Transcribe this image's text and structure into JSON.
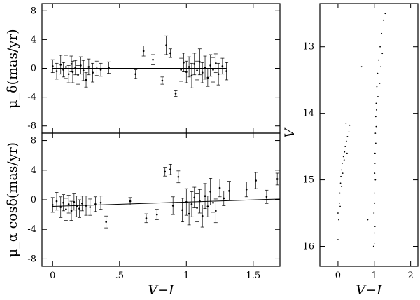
{
  "chart_data": [
    {
      "type": "scatter",
      "panel": "mu-delta",
      "ylabel": "μ_δ(mas/yr)",
      "xlabel": "",
      "xlim": [
        -0.08,
        1.7
      ],
      "ylim": [
        -9,
        9
      ],
      "xticks": [
        0,
        0.5,
        1,
        1.5
      ],
      "yticks": [
        -8,
        -4,
        0,
        4,
        8
      ],
      "ytick_labels": [
        "-8",
        "-4",
        "0",
        "4",
        "8"
      ],
      "fit_line": {
        "x": [
          0.0,
          1.3
        ],
        "y": [
          0.0,
          0.0
        ]
      },
      "points": [
        {
          "x": 0.0,
          "y": 0.3,
          "err": 0.9
        },
        {
          "x": 0.03,
          "y": -0.4,
          "err": 1.1
        },
        {
          "x": 0.06,
          "y": 0.5,
          "err": 1.3
        },
        {
          "x": 0.08,
          "y": -0.2,
          "err": 1.0
        },
        {
          "x": 0.1,
          "y": 0.2,
          "err": 1.6
        },
        {
          "x": 0.12,
          "y": -0.8,
          "err": 1.2
        },
        {
          "x": 0.14,
          "y": 0.6,
          "err": 1.1
        },
        {
          "x": 0.15,
          "y": -0.5,
          "err": 1.5
        },
        {
          "x": 0.17,
          "y": 0.1,
          "err": 1.0
        },
        {
          "x": 0.19,
          "y": -0.9,
          "err": 1.3
        },
        {
          "x": 0.21,
          "y": 0.4,
          "err": 1.2
        },
        {
          "x": 0.23,
          "y": -0.3,
          "err": 1.4
        },
        {
          "x": 0.25,
          "y": -1.6,
          "err": 1.0
        },
        {
          "x": 0.27,
          "y": 0.2,
          "err": 1.1
        },
        {
          "x": 0.3,
          "y": -0.6,
          "err": 1.3
        },
        {
          "x": 0.33,
          "y": 0.0,
          "err": 1.0
        },
        {
          "x": 0.36,
          "y": -0.2,
          "err": 0.9
        },
        {
          "x": 0.42,
          "y": 0.1,
          "err": 0.8
        },
        {
          "x": 0.62,
          "y": -0.8,
          "err": 0.6
        },
        {
          "x": 0.68,
          "y": 2.4,
          "err": 0.7
        },
        {
          "x": 0.75,
          "y": 1.2,
          "err": 0.7
        },
        {
          "x": 0.82,
          "y": -1.7,
          "err": 0.5
        },
        {
          "x": 0.85,
          "y": 3.2,
          "err": 1.3
        },
        {
          "x": 0.88,
          "y": 2.1,
          "err": 0.6
        },
        {
          "x": 0.92,
          "y": -3.5,
          "err": 0.4
        },
        {
          "x": 0.96,
          "y": -0.2,
          "err": 1.6
        },
        {
          "x": 0.98,
          "y": 0.8,
          "err": 1.3
        },
        {
          "x": 1.0,
          "y": -0.5,
          "err": 1.5
        },
        {
          "x": 1.02,
          "y": 0.2,
          "err": 1.4
        },
        {
          "x": 1.04,
          "y": -1.0,
          "err": 1.7
        },
        {
          "x": 1.06,
          "y": 0.6,
          "err": 1.5
        },
        {
          "x": 1.08,
          "y": -0.3,
          "err": 1.3
        },
        {
          "x": 1.1,
          "y": 0.9,
          "err": 1.8
        },
        {
          "x": 1.12,
          "y": -0.6,
          "err": 1.4
        },
        {
          "x": 1.14,
          "y": 0.1,
          "err": 1.6
        },
        {
          "x": 1.16,
          "y": -1.3,
          "err": 1.2
        },
        {
          "x": 1.18,
          "y": 0.4,
          "err": 1.5
        },
        {
          "x": 1.2,
          "y": -0.2,
          "err": 1.7
        },
        {
          "x": 1.22,
          "y": 0.7,
          "err": 1.3
        },
        {
          "x": 1.24,
          "y": -0.8,
          "err": 1.5
        },
        {
          "x": 1.27,
          "y": 0.3,
          "err": 1.1
        },
        {
          "x": 1.3,
          "y": -0.4,
          "err": 1.2
        }
      ]
    },
    {
      "type": "scatter",
      "panel": "mu-alpha",
      "ylabel": "μ_α cosδ(mas/yr)",
      "xlabel": "V−I",
      "xlim": [
        -0.08,
        1.7
      ],
      "ylim": [
        -9,
        9
      ],
      "xticks": [
        0,
        0.5,
        1,
        1.5
      ],
      "xtick_labels": [
        "0",
        ".5",
        "1",
        "1.5"
      ],
      "yticks": [
        -8,
        -4,
        0,
        4,
        8
      ],
      "ytick_labels": [
        "-8",
        "-4",
        "0",
        "4",
        "8"
      ],
      "fit_line": {
        "x": [
          0.0,
          1.7
        ],
        "y": [
          -0.9,
          0.1
        ]
      },
      "points": [
        {
          "x": 0.0,
          "y": -0.7,
          "err": 1.0
        },
        {
          "x": 0.03,
          "y": -0.2,
          "err": 1.2
        },
        {
          "x": 0.06,
          "y": -1.0,
          "err": 1.4
        },
        {
          "x": 0.08,
          "y": -0.4,
          "err": 1.1
        },
        {
          "x": 0.1,
          "y": -1.3,
          "err": 1.5
        },
        {
          "x": 0.12,
          "y": -0.6,
          "err": 1.2
        },
        {
          "x": 0.14,
          "y": -1.5,
          "err": 1.3
        },
        {
          "x": 0.16,
          "y": -0.3,
          "err": 1.1
        },
        {
          "x": 0.18,
          "y": -0.9,
          "err": 1.4
        },
        {
          "x": 0.2,
          "y": -1.2,
          "err": 1.2
        },
        {
          "x": 0.22,
          "y": -0.5,
          "err": 1.0
        },
        {
          "x": 0.25,
          "y": -0.8,
          "err": 1.3
        },
        {
          "x": 0.28,
          "y": -1.0,
          "err": 1.1
        },
        {
          "x": 0.32,
          "y": -0.6,
          "err": 1.0
        },
        {
          "x": 0.36,
          "y": -0.4,
          "err": 0.9
        },
        {
          "x": 0.4,
          "y": -3.0,
          "err": 0.8
        },
        {
          "x": 0.58,
          "y": -0.2,
          "err": 0.5
        },
        {
          "x": 0.7,
          "y": -2.5,
          "err": 0.6
        },
        {
          "x": 0.78,
          "y": -2.0,
          "err": 0.7
        },
        {
          "x": 0.84,
          "y": 3.8,
          "err": 0.6
        },
        {
          "x": 0.88,
          "y": 4.1,
          "err": 0.7
        },
        {
          "x": 0.9,
          "y": -0.8,
          "err": 1.2
        },
        {
          "x": 0.94,
          "y": 3.1,
          "err": 0.8
        },
        {
          "x": 0.97,
          "y": -1.4,
          "err": 1.6
        },
        {
          "x": 1.0,
          "y": -0.3,
          "err": 1.8
        },
        {
          "x": 1.02,
          "y": -1.9,
          "err": 1.5
        },
        {
          "x": 1.04,
          "y": -0.6,
          "err": 1.7
        },
        {
          "x": 1.06,
          "y": 0.3,
          "err": 1.4
        },
        {
          "x": 1.08,
          "y": -1.1,
          "err": 1.9
        },
        {
          "x": 1.1,
          "y": -0.2,
          "err": 1.6
        },
        {
          "x": 1.12,
          "y": -2.2,
          "err": 1.5
        },
        {
          "x": 1.14,
          "y": 0.5,
          "err": 1.7
        },
        {
          "x": 1.16,
          "y": -0.9,
          "err": 1.4
        },
        {
          "x": 1.18,
          "y": 1.1,
          "err": 1.8
        },
        {
          "x": 1.2,
          "y": -0.4,
          "err": 1.3
        },
        {
          "x": 1.22,
          "y": -1.5,
          "err": 1.6
        },
        {
          "x": 1.25,
          "y": 1.6,
          "err": 1.2
        },
        {
          "x": 1.28,
          "y": 0.2,
          "err": 1.0
        },
        {
          "x": 1.32,
          "y": 1.2,
          "err": 1.3
        },
        {
          "x": 1.45,
          "y": 1.4,
          "err": 1.0
        },
        {
          "x": 1.52,
          "y": 2.6,
          "err": 1.1
        },
        {
          "x": 1.6,
          "y": 0.4,
          "err": 0.9
        },
        {
          "x": 1.68,
          "y": 2.8,
          "err": 0.8
        }
      ]
    },
    {
      "type": "scatter",
      "panel": "cmd",
      "xlabel": "V−I",
      "ylabel": "V",
      "xlim": [
        -0.5,
        2.2
      ],
      "ylim": [
        16.3,
        12.35
      ],
      "y_inverted": true,
      "xticks": [
        0,
        1,
        2
      ],
      "xtick_labels": [
        "0",
        "1",
        "2"
      ],
      "yticks": [
        13,
        14,
        15,
        16
      ],
      "ytick_labels": [
        "13",
        "14",
        "15",
        "16"
      ],
      "points": [
        {
          "x": 0.0,
          "y": 15.9
        },
        {
          "x": 0.02,
          "y": 15.6
        },
        {
          "x": 0.0,
          "y": 15.5
        },
        {
          "x": 0.04,
          "y": 15.35
        },
        {
          "x": 0.05,
          "y": 15.2
        },
        {
          "x": 0.07,
          "y": 15.05
        },
        {
          "x": 0.08,
          "y": 14.95
        },
        {
          "x": 0.1,
          "y": 14.85
        },
        {
          "x": 0.12,
          "y": 14.75
        },
        {
          "x": 0.15,
          "y": 14.65
        },
        {
          "x": 0.18,
          "y": 14.58
        },
        {
          "x": 0.2,
          "y": 14.5
        },
        {
          "x": 0.23,
          "y": 14.42
        },
        {
          "x": 0.26,
          "y": 14.35
        },
        {
          "x": 0.3,
          "y": 14.28
        },
        {
          "x": 0.22,
          "y": 14.15
        },
        {
          "x": 0.32,
          "y": 14.18
        },
        {
          "x": 0.25,
          "y": 14.6
        },
        {
          "x": 0.17,
          "y": 14.7
        },
        {
          "x": 0.13,
          "y": 14.9
        },
        {
          "x": 0.1,
          "y": 15.1
        },
        {
          "x": 0.06,
          "y": 15.4
        },
        {
          "x": 0.65,
          "y": 13.3
        },
        {
          "x": 0.82,
          "y": 15.6
        },
        {
          "x": 0.98,
          "y": 16.0
        },
        {
          "x": 1.0,
          "y": 15.8
        },
        {
          "x": 0.99,
          "y": 15.5
        },
        {
          "x": 1.0,
          "y": 15.2
        },
        {
          "x": 1.01,
          "y": 14.9
        },
        {
          "x": 1.02,
          "y": 14.6
        },
        {
          "x": 1.03,
          "y": 14.3
        },
        {
          "x": 1.04,
          "y": 14.05
        },
        {
          "x": 1.05,
          "y": 13.85
        },
        {
          "x": 1.07,
          "y": 13.6
        },
        {
          "x": 1.09,
          "y": 13.4
        },
        {
          "x": 1.12,
          "y": 13.2
        },
        {
          "x": 1.16,
          "y": 13.0
        },
        {
          "x": 1.2,
          "y": 12.8
        },
        {
          "x": 1.25,
          "y": 12.6
        },
        {
          "x": 1.3,
          "y": 12.5
        },
        {
          "x": 1.1,
          "y": 13.75
        },
        {
          "x": 1.15,
          "y": 13.55
        },
        {
          "x": 1.18,
          "y": 13.3
        },
        {
          "x": 1.22,
          "y": 13.1
        },
        {
          "x": 1.0,
          "y": 15.95
        },
        {
          "x": 1.02,
          "y": 15.7
        },
        {
          "x": 1.01,
          "y": 15.35
        },
        {
          "x": 1.03,
          "y": 15.0
        },
        {
          "x": 1.02,
          "y": 14.75
        },
        {
          "x": 1.04,
          "y": 14.45
        },
        {
          "x": 1.05,
          "y": 14.2
        },
        {
          "x": 1.06,
          "y": 13.95
        }
      ]
    }
  ]
}
